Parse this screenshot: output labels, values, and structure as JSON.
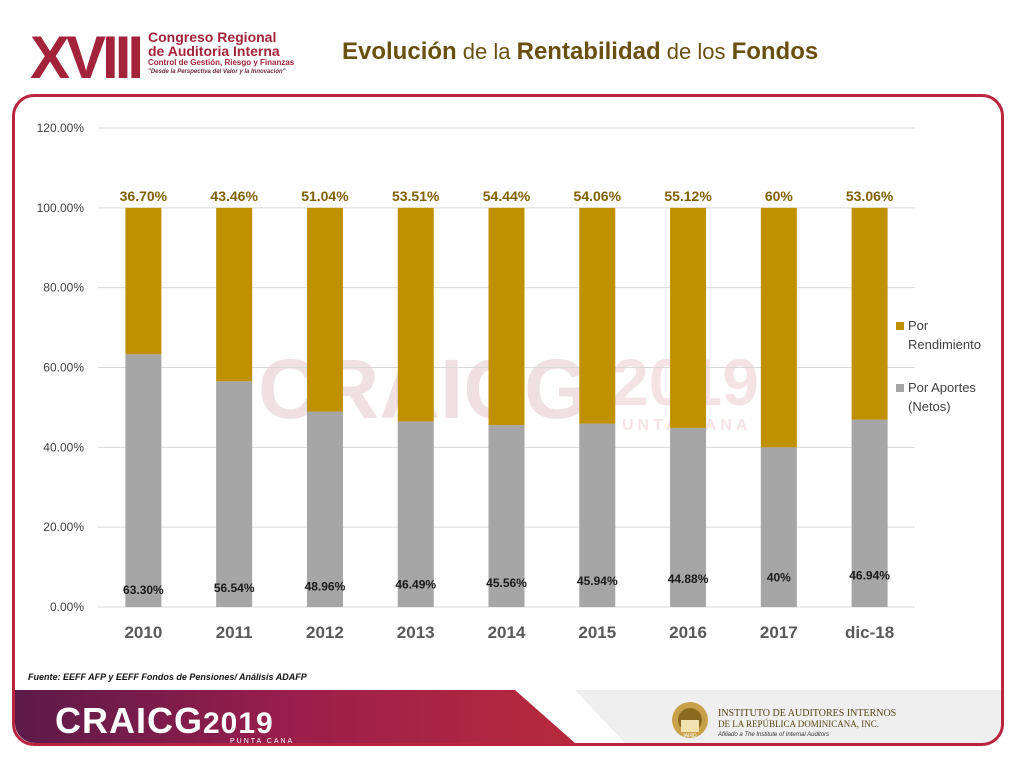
{
  "header": {
    "logo_numeral": "XVIII",
    "logo_line1": "Congreso Regional",
    "logo_line2": "de Auditoria Interna",
    "logo_line3": "Control de Gestión, Riesgo y Finanzas",
    "logo_line4": "\"Desde la Perspectiva del Valor y la Innovación\"",
    "title_part1": "Evolución",
    "title_part2": " de la ",
    "title_part3": "Rentabilidad",
    "title_part4": " de los ",
    "title_part5": "Fondos"
  },
  "chart_data": {
    "type": "bar",
    "stacked": true,
    "categories": [
      "2010",
      "2011",
      "2012",
      "2013",
      "2014",
      "2015",
      "2016",
      "2017",
      "dic-18"
    ],
    "series": [
      {
        "name": "Por Aportes (Netos)",
        "values": [
          63.3,
          56.54,
          48.96,
          46.49,
          45.56,
          45.94,
          44.88,
          40,
          46.94
        ],
        "labels": [
          "63.30%",
          "56.54%",
          "48.96%",
          "46.49%",
          "45.56%",
          "45.94%",
          "44.88%",
          "40%",
          "46.94%"
        ],
        "color": "#a6a6a6"
      },
      {
        "name": "Por Rendimiento",
        "values": [
          36.7,
          43.46,
          51.04,
          53.51,
          54.44,
          54.06,
          55.12,
          60,
          53.06
        ],
        "labels": [
          "36.70%",
          "43.46%",
          "51.04%",
          "53.51%",
          "54.44%",
          "54.06%",
          "55.12%",
          "60%",
          "53.06%"
        ],
        "color": "#bf9000"
      }
    ],
    "y_ticks": [
      "0.00%",
      "20.00%",
      "40.00%",
      "60.00%",
      "80.00%",
      "100.00%",
      "120.00%"
    ],
    "ylim": [
      0,
      120
    ],
    "grid": true,
    "legend_placement": "right",
    "legend": [
      {
        "line1": "Por",
        "line2": "Rendimiento",
        "color": "#bf9000"
      },
      {
        "line1": "Por Aportes",
        "line2": "(Netos)",
        "color": "#a6a6a6"
      }
    ]
  },
  "watermark": {
    "text": "CRAICG",
    "year": "2019",
    "sub": "UNTA CANA"
  },
  "source": "Fuente: EEFF AFP y EEFF Fondos de Pensiones/ Análisis ADAFP",
  "footer": {
    "brand": "CRAICG",
    "year": "2019",
    "place": "PUNTA CANA",
    "iai_line1": "INSTITUTO DE AUDITORES INTERNOS",
    "iai_line2": "DE LA REPÚBLICA DOMINICANA, INC.",
    "iai_line3": "Afiliado a The Institute of Internal Auditors",
    "iai_badge": "IAIRD"
  }
}
